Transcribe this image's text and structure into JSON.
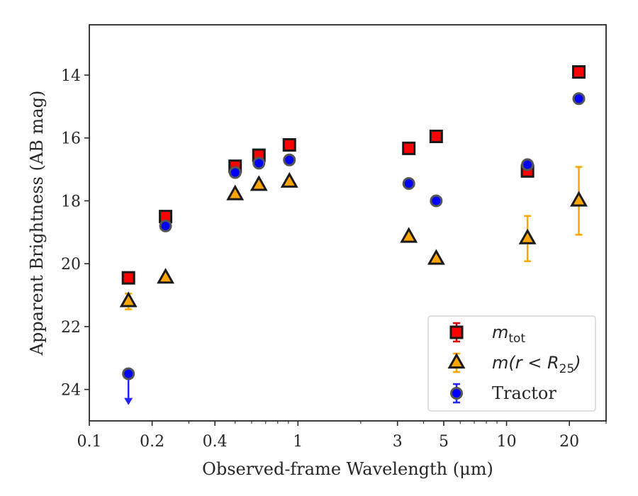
{
  "chart_data": {
    "type": "scatter",
    "title": "",
    "xlabel": "Observed-frame Wavelength (μm)",
    "ylabel": "Apparent Brightness (AB mag)",
    "xscale": "log",
    "xlim": [
      0.1,
      30
    ],
    "ylim": [
      25,
      12.4
    ],
    "y_inverted": true,
    "x_ticks": [
      0.1,
      0.2,
      0.4,
      1,
      3,
      5,
      10,
      20
    ],
    "x_tick_labels": [
      "0.1",
      "0.2",
      "0.4",
      "1",
      "3",
      "5",
      "10",
      "20"
    ],
    "y_ticks": [
      14,
      16,
      18,
      20,
      22,
      24
    ],
    "y_tick_labels": [
      "14",
      "16",
      "18",
      "20",
      "22",
      "24"
    ],
    "grid": false,
    "legend_position": "lower-right",
    "series": [
      {
        "name": "m_tot",
        "legend_main": "m",
        "legend_sub": "tot",
        "marker": "square",
        "color": "#ff0000",
        "edge": "#1a1a1a",
        "errbar_color": "#dd0000",
        "x": [
          0.154,
          0.232,
          0.5,
          0.65,
          0.91,
          3.4,
          4.6,
          12.6,
          22.2
        ],
        "y": [
          20.45,
          18.5,
          16.9,
          16.55,
          16.22,
          16.33,
          15.95,
          17.05,
          13.9
        ],
        "yerr": [
          0.1,
          0.08,
          0.05,
          0.05,
          0.05,
          0.05,
          0.05,
          0.12,
          0.08
        ]
      },
      {
        "name": "m(r<R_25)",
        "legend_main": "m(r < R",
        "legend_sub": "25",
        "legend_close": ")",
        "marker": "triangle",
        "color": "#ffa500",
        "edge": "#1a1a1a",
        "errbar_color": "#ffa500",
        "x": [
          0.154,
          0.232,
          0.5,
          0.65,
          0.91,
          3.4,
          4.6,
          12.6,
          22.2
        ],
        "y": [
          21.2,
          20.45,
          17.8,
          17.5,
          17.4,
          19.15,
          19.85,
          19.2,
          18.0
        ],
        "yerr": [
          0.25,
          0.1,
          0.05,
          0.05,
          0.05,
          0.07,
          0.07,
          0.72,
          1.08
        ]
      },
      {
        "name": "Tractor",
        "legend_main": "Tractor",
        "marker": "circle",
        "color": "#0000ff",
        "edge": "#555555",
        "errbar_color": "#2222ff",
        "x": [
          0.154,
          0.232,
          0.5,
          0.65,
          0.91,
          3.4,
          4.6,
          12.6,
          22.2
        ],
        "y": [
          23.5,
          18.8,
          17.1,
          16.8,
          16.7,
          17.45,
          18.0,
          16.85,
          14.75
        ],
        "yerr": [
          0,
          0.05,
          0.05,
          0.05,
          0.05,
          0.05,
          0.05,
          0.05,
          0.05
        ],
        "upper_limit": [
          true,
          false,
          false,
          false,
          false,
          false,
          false,
          false,
          false
        ],
        "limit_arrow_to": 24.45
      }
    ]
  }
}
